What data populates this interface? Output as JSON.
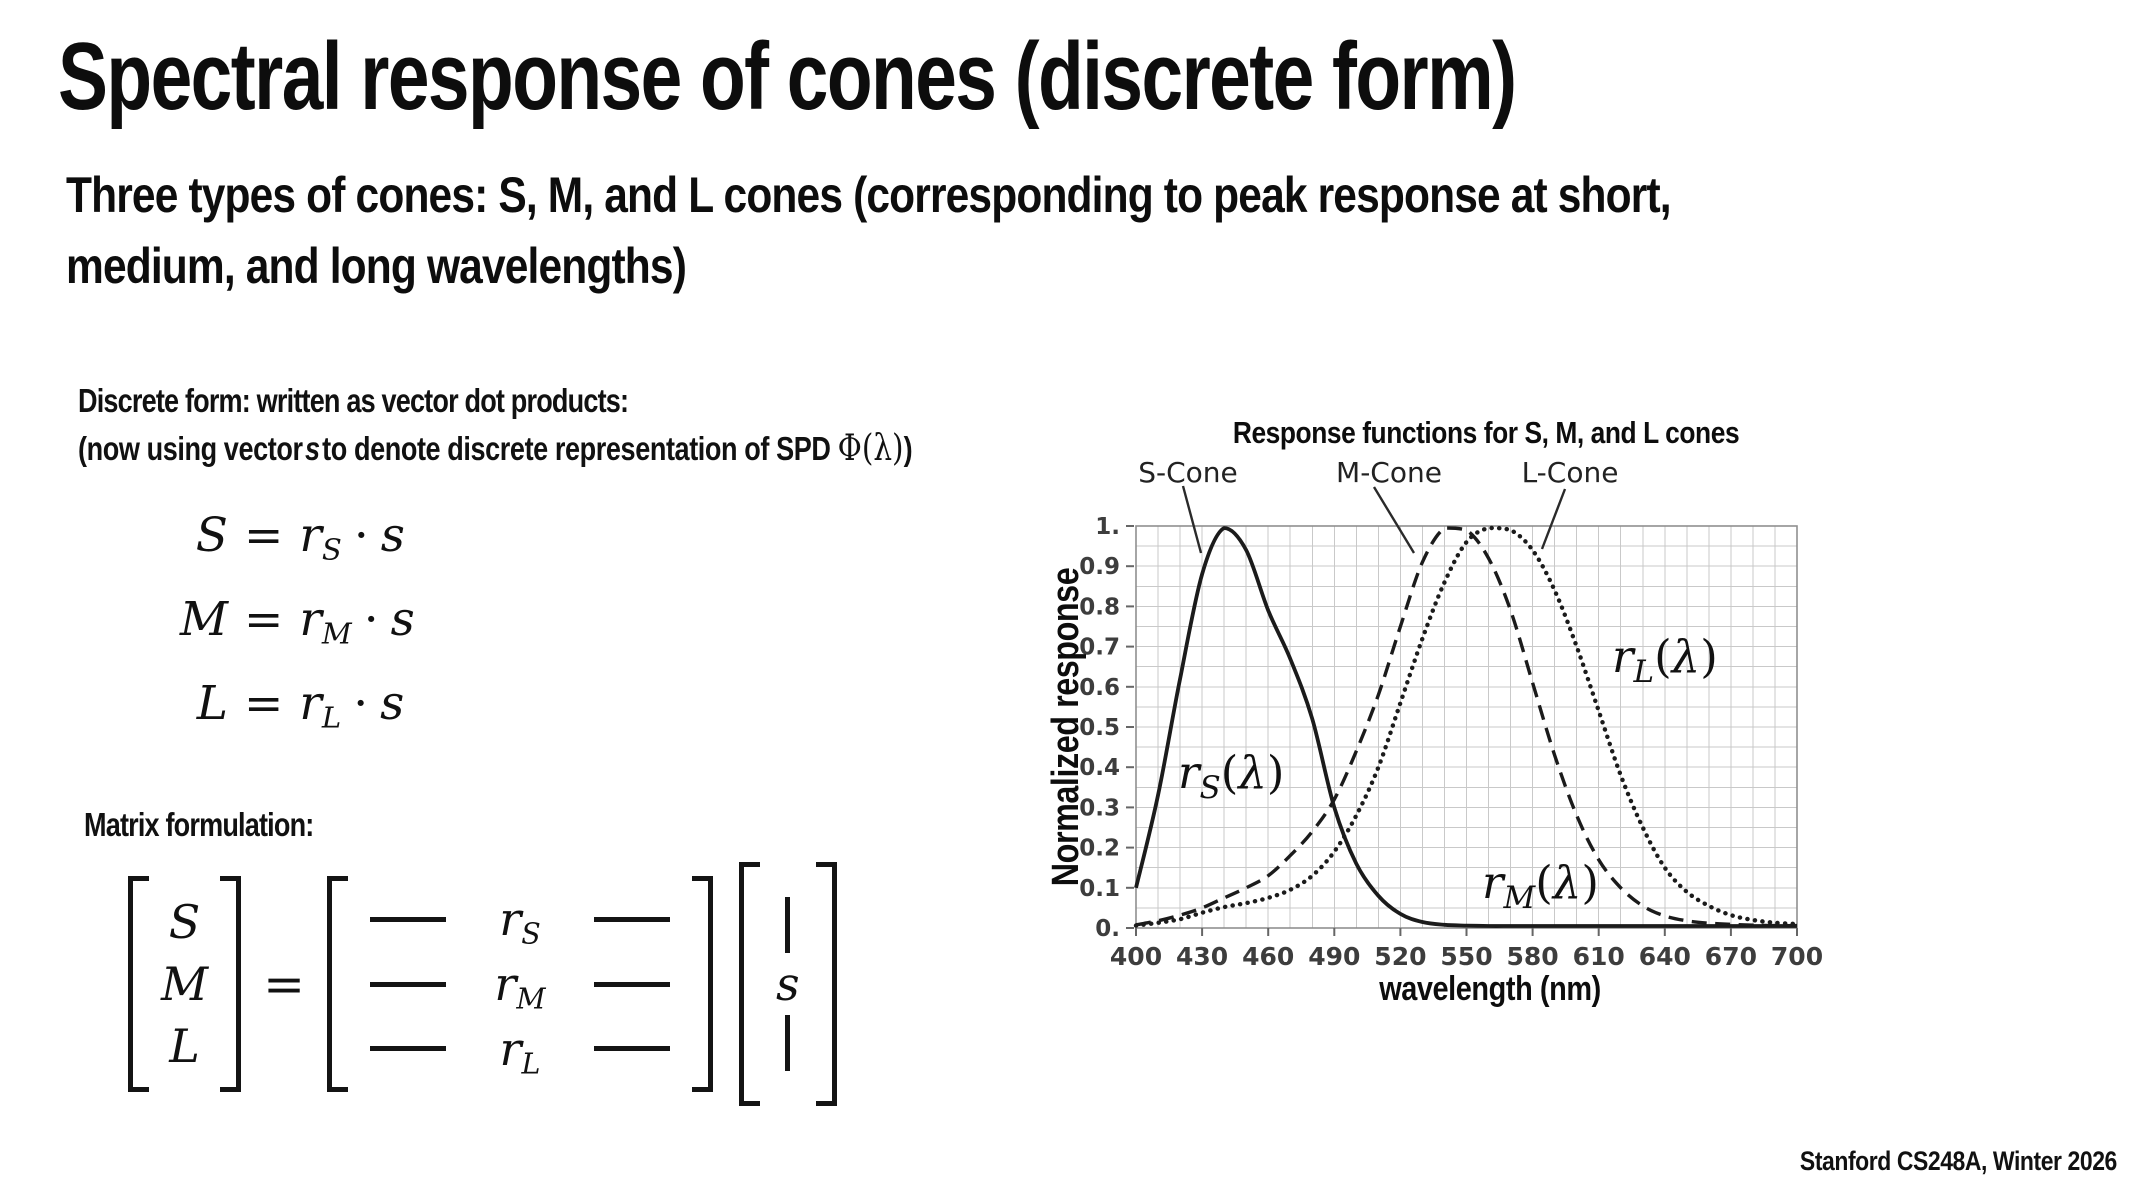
{
  "slide": {
    "title": "Spectral response of cones (discrete form)",
    "subtitle_line1": "Three types of cones: S, M, and L cones (corresponding to peak response at short,",
    "subtitle_line2": "medium, and long wavelengths)",
    "footer": "Stanford CS248A, Winter 2026"
  },
  "discrete_section": {
    "heading": "Discrete form: written as vector dot products:",
    "note": {
      "prefix": "(now using vector",
      "vector_s": "s",
      "middle": "to denote discrete representation of SPD",
      "phi_open": "Φ(",
      "lambda": "λ",
      "phi_close": ")",
      "suffix": ")"
    },
    "equations": [
      {
        "lhs": "S",
        "equals": "=",
        "r": "r",
        "sub": "S",
        "dot": "·",
        "rhs": "s"
      },
      {
        "lhs": "M",
        "equals": "=",
        "r": "r",
        "sub": "M",
        "dot": "·",
        "rhs": "s"
      },
      {
        "lhs": "L",
        "equals": "=",
        "r": "r",
        "sub": "L",
        "dot": "·",
        "rhs": "s"
      }
    ]
  },
  "matrix_section": {
    "heading": "Matrix formulation:",
    "lhs_vector": [
      "S",
      "M",
      "L"
    ],
    "equals": "=",
    "matrix_rows": [
      {
        "r": "r",
        "sub": "S"
      },
      {
        "r": "r",
        "sub": "M"
      },
      {
        "r": "r",
        "sub": "L"
      }
    ],
    "rhs_vector_s": "s"
  },
  "chart_data": {
    "type": "line",
    "title": "Response functions for S, M, and L cones",
    "xlabel": "wavelength (nm)",
    "ylabel": "Normalized response",
    "xlim": [
      400,
      700
    ],
    "ylim": [
      0,
      1
    ],
    "x_ticks": [
      400,
      430,
      460,
      490,
      520,
      550,
      580,
      610,
      640,
      670,
      700
    ],
    "y_tick_labels": [
      "0.",
      "0.1",
      "0.2",
      "0.3",
      "0.4",
      "0.5",
      "0.6",
      "0.7",
      "0.8",
      "0.9",
      "1."
    ],
    "grid": {
      "show": true,
      "x_minor_step": 10,
      "y_minor_step": 0.05,
      "color": "#c9c9c9"
    },
    "legend_position": "annotated-above",
    "series": [
      {
        "name": "S-Cone",
        "line_style": "solid",
        "annotation": {
          "r": "r",
          "sub": "S",
          "open": "(",
          "lambda": "λ",
          "close": ")"
        },
        "x_start": 400,
        "x_step": 10,
        "values": [
          0.1,
          0.33,
          0.62,
          0.88,
          1.0,
          0.94,
          0.79,
          0.67,
          0.52,
          0.3,
          0.16,
          0.08,
          0.035,
          0.015,
          0.008,
          0.006,
          0.005,
          0.005,
          0.005,
          0.005,
          0.005,
          0.005,
          0.005,
          0.005,
          0.005,
          0.005,
          0.005,
          0.005,
          0.005,
          0.005,
          0.005
        ]
      },
      {
        "name": "M-Cone",
        "line_style": "dashed",
        "annotation": {
          "r": "r",
          "sub": "M",
          "open": "(",
          "lambda": "λ",
          "close": ")"
        },
        "x_start": 400,
        "x_step": 10,
        "values": [
          0.008,
          0.018,
          0.032,
          0.05,
          0.075,
          0.1,
          0.13,
          0.18,
          0.24,
          0.32,
          0.44,
          0.58,
          0.75,
          0.91,
          1.0,
          0.99,
          0.92,
          0.79,
          0.61,
          0.43,
          0.28,
          0.17,
          0.1,
          0.055,
          0.03,
          0.018,
          0.012,
          0.009,
          0.007,
          0.006,
          0.006
        ]
      },
      {
        "name": "L-Cone",
        "line_style": "dotted",
        "annotation": {
          "r": "r",
          "sub": "L",
          "open": "(",
          "lambda": "λ",
          "close": ")"
        },
        "x_start": 400,
        "x_step": 10,
        "values": [
          0.006,
          0.013,
          0.022,
          0.038,
          0.052,
          0.062,
          0.075,
          0.095,
          0.13,
          0.19,
          0.28,
          0.4,
          0.56,
          0.72,
          0.86,
          0.96,
          1.0,
          0.99,
          0.94,
          0.84,
          0.7,
          0.54,
          0.38,
          0.25,
          0.15,
          0.09,
          0.055,
          0.032,
          0.02,
          0.013,
          0.01
        ]
      }
    ]
  }
}
